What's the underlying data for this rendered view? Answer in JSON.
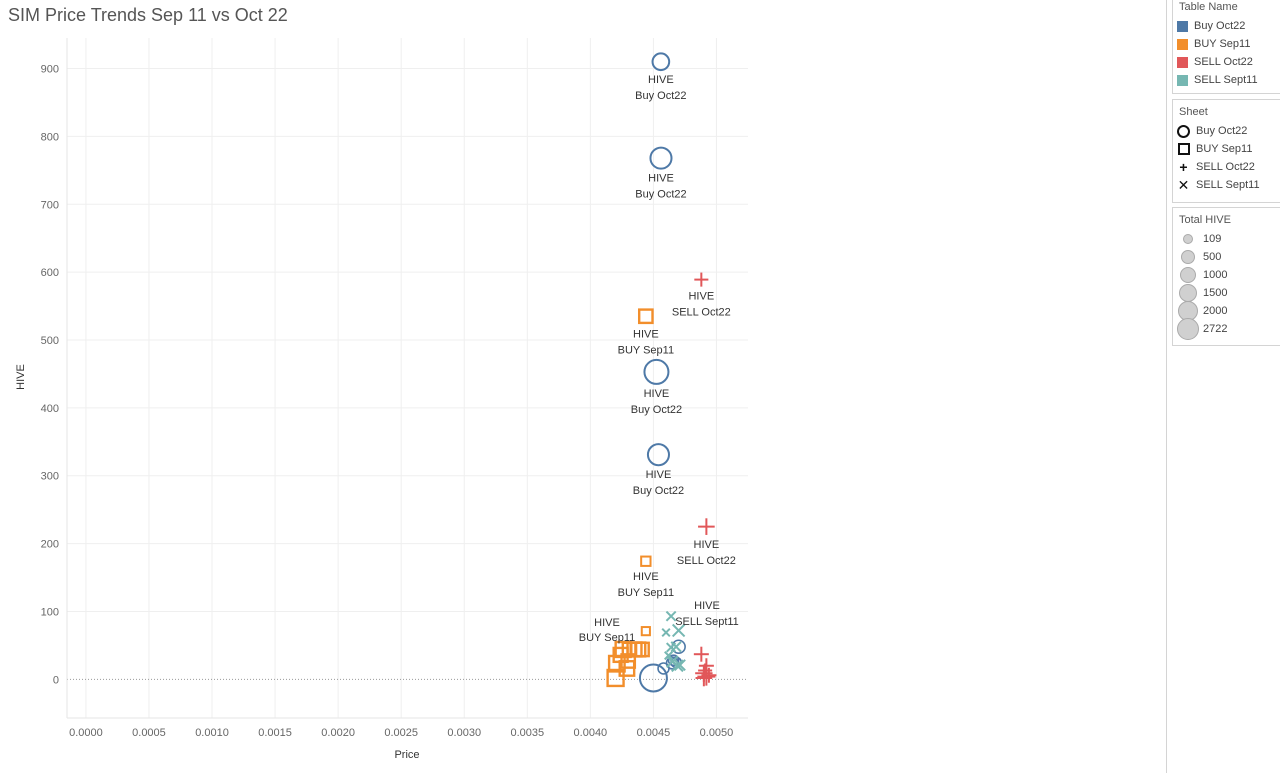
{
  "page": {
    "title": "SIM Price Trends Sep 11 vs Oct 22"
  },
  "legends": {
    "table_name": {
      "title": "Table Name",
      "items": [
        {
          "label": "Buy Oct22",
          "color": "#4e79a7"
        },
        {
          "label": "BUY Sep11",
          "color": "#f28e2b"
        },
        {
          "label": "SELL Oct22",
          "color": "#e15759"
        },
        {
          "label": "SELL Sept11",
          "color": "#76b7b2"
        }
      ]
    },
    "sheet": {
      "title": "Sheet",
      "items": [
        {
          "label": "Buy Oct22",
          "shape": "circle"
        },
        {
          "label": "BUY Sep11",
          "shape": "square"
        },
        {
          "label": "SELL Oct22",
          "shape": "plus"
        },
        {
          "label": "SELL Sept11",
          "shape": "cross"
        }
      ]
    },
    "total_hive": {
      "title": "Total HIVE",
      "items": [
        {
          "label": "109",
          "value": 109
        },
        {
          "label": "500",
          "value": 500
        },
        {
          "label": "1000",
          "value": 1000
        },
        {
          "label": "1500",
          "value": 1500
        },
        {
          "label": "2000",
          "value": 2000
        },
        {
          "label": "2722",
          "value": 2722
        }
      ]
    }
  },
  "chart_data": {
    "type": "scatter",
    "title": "SIM Price Trends Sep 11 vs Oct 22",
    "xlabel": "Price",
    "ylabel": "HIVE",
    "xlim": [
      -0.00015,
      0.00525
    ],
    "ylim": [
      -57,
      945
    ],
    "xticks": [
      "0.0000",
      "0.0005",
      "0.0010",
      "0.0015",
      "0.0020",
      "0.0025",
      "0.0030",
      "0.0035",
      "0.0040",
      "0.0045",
      "0.0050"
    ],
    "xtick_values": [
      0.0,
      0.0005,
      0.001,
      0.0015,
      0.002,
      0.0025,
      0.003,
      0.0035,
      0.004,
      0.0045,
      0.005
    ],
    "yticks": [
      "0",
      "100",
      "200",
      "300",
      "400",
      "500",
      "600",
      "700",
      "800",
      "900"
    ],
    "ytick_values": [
      0,
      100,
      200,
      300,
      400,
      500,
      600,
      700,
      800,
      900
    ],
    "grid": true,
    "zero_line": true,
    "series": [
      {
        "name": "Buy Oct22",
        "color": "#4e79a7",
        "shape": "circle",
        "points": [
          {
            "x": 0.004559,
            "y": 910,
            "size": 700,
            "label": [
              "HIVE",
              "Buy Oct22"
            ]
          },
          {
            "x": 0.00456,
            "y": 768,
            "size": 1400,
            "label": [
              "HIVE",
              "Buy Oct22"
            ]
          },
          {
            "x": 0.004524,
            "y": 453,
            "size": 2000,
            "label": [
              "HIVE",
              "Buy Oct22"
            ]
          },
          {
            "x": 0.00454,
            "y": 331,
            "size": 1400,
            "label": [
              "HIVE",
              "Buy Oct22"
            ]
          },
          {
            "x": 0.0045,
            "y": 2,
            "size": 2722
          },
          {
            "x": 0.00458,
            "y": 16,
            "size": 150
          },
          {
            "x": 0.00466,
            "y": 28,
            "size": 109
          },
          {
            "x": 0.00468,
            "y": 25,
            "size": 109
          },
          {
            "x": 0.0047,
            "y": 48,
            "size": 300
          },
          {
            "x": 0.00465,
            "y": 24,
            "size": 200
          }
        ]
      },
      {
        "name": "BUY Sep11",
        "color": "#f28e2b",
        "shape": "square",
        "points": [
          {
            "x": 0.00444,
            "y": 535,
            "size": 700,
            "label": [
              "HIVE",
              "BUY Sep11"
            ]
          },
          {
            "x": 0.00444,
            "y": 174,
            "size": 200,
            "label": [
              "HIVE",
              "BUY Sep11"
            ]
          },
          {
            "x": 0.00444,
            "y": 71,
            "size": 109,
            "label": [
              "HIVE",
              "BUY Sep11"
            ]
          },
          {
            "x": 0.0042,
            "y": 2,
            "size": 1200
          },
          {
            "x": 0.00421,
            "y": 23,
            "size": 1100
          },
          {
            "x": 0.00424,
            "y": 36,
            "size": 800
          },
          {
            "x": 0.00426,
            "y": 44,
            "size": 1000
          },
          {
            "x": 0.00429,
            "y": 16,
            "size": 900
          },
          {
            "x": 0.0043,
            "y": 27,
            "size": 700
          },
          {
            "x": 0.00431,
            "y": 44,
            "size": 700
          },
          {
            "x": 0.00435,
            "y": 44,
            "size": 800
          },
          {
            "x": 0.00438,
            "y": 44,
            "size": 800
          },
          {
            "x": 0.00441,
            "y": 44,
            "size": 700
          }
        ]
      },
      {
        "name": "SELL Oct22",
        "color": "#e15759",
        "shape": "plus",
        "points": [
          {
            "x": 0.00488,
            "y": 589,
            "size": 400,
            "label": [
              "HIVE",
              "SELL Oct22"
            ]
          },
          {
            "x": 0.00492,
            "y": 225,
            "size": 700,
            "label": [
              "HIVE",
              "SELL Oct22"
            ]
          },
          {
            "x": 0.00488,
            "y": 37,
            "size": 500
          },
          {
            "x": 0.00492,
            "y": 20,
            "size": 500
          },
          {
            "x": 0.0049,
            "y": 9,
            "size": 800
          },
          {
            "x": 0.00492,
            "y": 4,
            "size": 900
          },
          {
            "x": 0.0049,
            "y": 2,
            "size": 700
          },
          {
            "x": 0.00494,
            "y": 6,
            "size": 500
          },
          {
            "x": 0.00491,
            "y": 13,
            "size": 400
          }
        ]
      },
      {
        "name": "SELL Sept11",
        "color": "#76b7b2",
        "shape": "cross",
        "points": [
          {
            "x": 0.00464,
            "y": 93,
            "size": 250,
            "label": [
              "HIVE",
              "SELL Sept11"
            ]
          },
          {
            "x": 0.0046,
            "y": 69,
            "size": 109
          },
          {
            "x": 0.0047,
            "y": 72,
            "size": 600
          },
          {
            "x": 0.00464,
            "y": 47,
            "size": 200
          },
          {
            "x": 0.00468,
            "y": 48,
            "size": 300
          },
          {
            "x": 0.00462,
            "y": 35,
            "size": 109
          },
          {
            "x": 0.00465,
            "y": 26,
            "size": 500
          },
          {
            "x": 0.00469,
            "y": 20,
            "size": 500
          },
          {
            "x": 0.00471,
            "y": 21,
            "size": 400
          }
        ]
      }
    ]
  }
}
